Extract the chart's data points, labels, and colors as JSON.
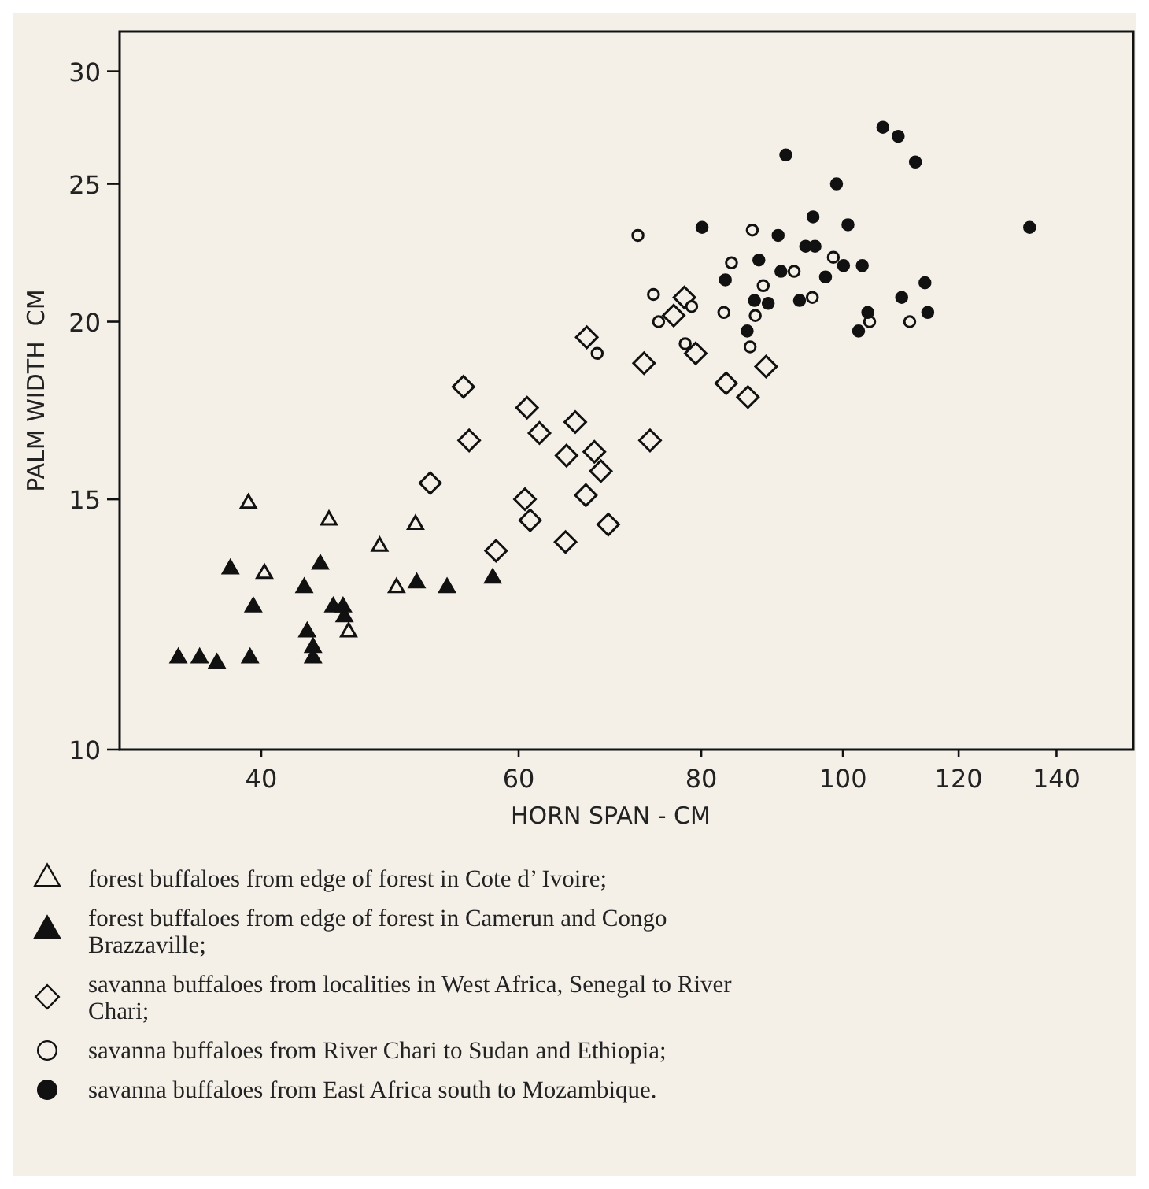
{
  "chart_data": {
    "type": "scatter",
    "xlabel": "HORN SPAN - CM",
    "ylabel": "PALM WIDTH  CM",
    "log": "xy",
    "xlim": [
      32,
      158
    ],
    "ylim": [
      10,
      32
    ],
    "xticks": [
      40,
      60,
      80,
      100,
      120,
      140
    ],
    "yticks": [
      10,
      15,
      20,
      25,
      30
    ],
    "grid": false,
    "legend": "bottom",
    "series": [
      {
        "name": "forest buffaloes from edge of forest in Cote d’ Ivoire;",
        "color": "#f4f0e8",
        "marker": "triangle",
        "x": [
          39.2,
          44.5,
          51.0,
          48.2,
          40.2,
          49.5,
          45.9
        ],
        "values": [
          14.9,
          14.5,
          14.4,
          13.9,
          13.3,
          13.0,
          12.1
        ]
      },
      {
        "name": "forest buffaloes from edge of forest in Camerun and Congo Brazzaville;",
        "color": "#111111",
        "marker": "triangle",
        "x": [
          38.1,
          43.9,
          39.5,
          42.8,
          44.8,
          45.5,
          45.6,
          43.0,
          43.4,
          43.4,
          39.3,
          35.1,
          36.3,
          37.3,
          51.1,
          53.6,
          57.6
        ],
        "values": [
          13.4,
          13.5,
          12.6,
          13.0,
          12.6,
          12.6,
          12.4,
          12.1,
          11.8,
          11.6,
          11.6,
          11.6,
          11.6,
          11.5,
          13.1,
          13.0,
          13.2
        ]
      },
      {
        "name": "savanna buffaloes from localities in West Africa, Senegal to River Chari;",
        "color": "#f4f0e8",
        "marker": "diamond",
        "x": [
          55.0,
          55.5,
          52.2,
          57.9,
          60.8,
          62.0,
          65.6,
          64.7,
          67.6,
          68.3,
          66.7,
          60.6,
          61.1,
          64.6,
          69.1,
          66.8,
          73.1,
          73.8,
          76.6,
          77.9,
          79.3,
          83.2,
          86.1,
          88.6
        ],
        "values": [
          18.0,
          16.5,
          15.4,
          13.8,
          17.4,
          16.7,
          17.0,
          16.1,
          16.2,
          15.7,
          15.1,
          15.0,
          14.5,
          14.0,
          14.4,
          19.5,
          18.7,
          16.5,
          20.2,
          20.8,
          19.0,
          18.1,
          17.7,
          18.6
        ]
      },
      {
        "name": "savanna buffaloes from River Chari to Sudan and Ethiopia;",
        "color": "#f4f0e8",
        "marker": "circle",
        "x": [
          72.4,
          86.7,
          83.9,
          74.2,
          78.8,
          74.8,
          82.9,
          88.2,
          87.1,
          92.6,
          95.3,
          98.5,
          104.3,
          111.1,
          86.4,
          78.0,
          67.9
        ],
        "values": [
          23.0,
          23.2,
          22.0,
          20.9,
          20.5,
          20.0,
          20.3,
          21.2,
          20.2,
          21.7,
          20.8,
          22.2,
          20.0,
          20.0,
          19.2,
          19.3,
          19.0
        ]
      },
      {
        "name": "savanna buffaloes from East Africa south to Mozambique.",
        "color": "#111111",
        "marker": "circle",
        "x": [
          80.1,
          91.4,
          99.0,
          106.5,
          109.1,
          112.1,
          134.2,
          90.3,
          95.4,
          100.8,
          94.3,
          95.7,
          87.6,
          90.7,
          83.1,
          97.3,
          100.1,
          103.1,
          87.0,
          88.9,
          93.4,
          86.0,
          102.5,
          104.0,
          109.7,
          113.8,
          114.3
        ],
        "values": [
          23.3,
          26.2,
          25.0,
          27.4,
          27.0,
          25.9,
          23.3,
          23.0,
          23.7,
          23.4,
          22.6,
          22.6,
          22.1,
          21.7,
          21.4,
          21.5,
          21.9,
          21.9,
          20.7,
          20.6,
          20.7,
          19.7,
          19.7,
          20.3,
          20.8,
          21.3,
          20.3
        ]
      }
    ]
  }
}
